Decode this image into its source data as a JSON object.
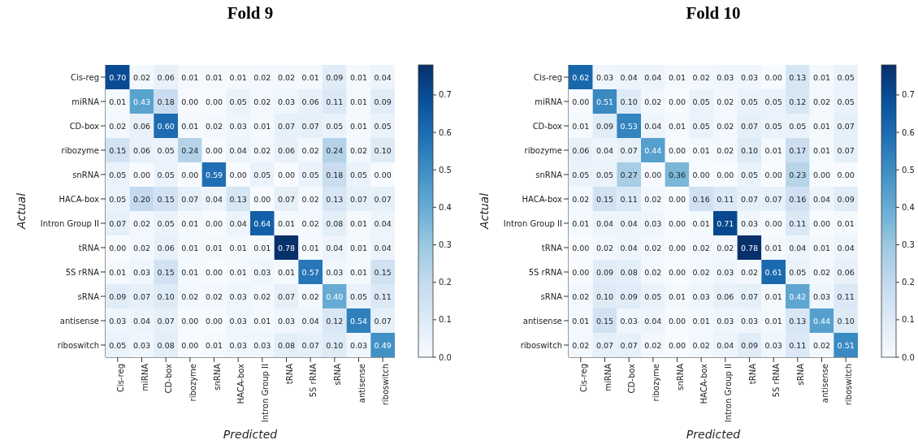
{
  "chart_data": [
    {
      "type": "heatmap",
      "title": "Fold 9",
      "xlabel": "Predicted",
      "ylabel": "Actual",
      "clim": [
        0,
        0.78
      ],
      "cticks": [
        {
          "value": 0,
          "label": "0.0"
        },
        {
          "value": 0.1,
          "label": "0.1"
        },
        {
          "value": 0.2,
          "label": "0.2"
        },
        {
          "value": 0.3,
          "label": "0.3"
        },
        {
          "value": 0.4,
          "label": "0.4"
        },
        {
          "value": 0.5,
          "label": "0.5"
        },
        {
          "value": 0.6,
          "label": "0.6"
        },
        {
          "value": 0.7,
          "label": "0.7"
        }
      ],
      "categories": [
        "Cis-reg",
        "miRNA",
        "CD-box",
        "ribozyme",
        "snRNA",
        "HACA-box",
        "Intron Group II",
        "tRNA",
        "5S rRNA",
        "sRNA",
        "antisense",
        "riboswitch"
      ],
      "y_categories": [
        "Cis-reg",
        "miRNA",
        "CD-box",
        "ribozyme",
        "snRNA",
        "HACA-box",
        "Intron Group II",
        "tRNA",
        "5S rRNA",
        "sRNA",
        "antisense",
        "riboswitch"
      ],
      "cells": [
        [
          0.7,
          0.02,
          0.06,
          0.01,
          0.01,
          0.01,
          0.02,
          0.02,
          0.01,
          0.09,
          0.01,
          0.04
        ],
        [
          0.01,
          0.43,
          0.18,
          0.0,
          0.0,
          0.05,
          0.02,
          0.03,
          0.06,
          0.11,
          0.01,
          0.09
        ],
        [
          0.02,
          0.06,
          0.6,
          0.01,
          0.02,
          0.03,
          0.01,
          0.07,
          0.07,
          0.05,
          0.01,
          0.05
        ],
        [
          0.15,
          0.06,
          0.05,
          0.24,
          0.0,
          0.04,
          0.02,
          0.06,
          0.02,
          0.24,
          0.02,
          0.1
        ],
        [
          0.05,
          0.0,
          0.05,
          0.0,
          0.59,
          0.0,
          0.05,
          0.0,
          0.05,
          0.18,
          0.05,
          0.0
        ],
        [
          0.05,
          0.2,
          0.15,
          0.07,
          0.04,
          0.13,
          0.0,
          0.07,
          0.02,
          0.13,
          0.07,
          0.07
        ],
        [
          0.07,
          0.02,
          0.05,
          0.01,
          0.0,
          0.04,
          0.64,
          0.01,
          0.02,
          0.08,
          0.01,
          0.04
        ],
        [
          0.0,
          0.02,
          0.06,
          0.01,
          0.01,
          0.01,
          0.01,
          0.78,
          0.01,
          0.04,
          0.01,
          0.04
        ],
        [
          0.01,
          0.03,
          0.15,
          0.01,
          0.0,
          0.01,
          0.03,
          0.01,
          0.57,
          0.03,
          0.01,
          0.15
        ],
        [
          0.09,
          0.07,
          0.1,
          0.02,
          0.02,
          0.03,
          0.02,
          0.07,
          0.02,
          0.4,
          0.05,
          0.11
        ],
        [
          0.03,
          0.04,
          0.07,
          0.0,
          0.0,
          0.03,
          0.01,
          0.03,
          0.04,
          0.12,
          0.54,
          0.07
        ],
        [
          0.05,
          0.03,
          0.08,
          0.0,
          0.01,
          0.03,
          0.03,
          0.08,
          0.07,
          0.1,
          0.03,
          0.49
        ]
      ],
      "cell_labels": [
        [
          "0.70",
          "0.02",
          "0.06",
          "0.01",
          "0.01",
          "0.01",
          "0.02",
          "0.02",
          "0.01",
          "0.09",
          "0.01",
          "0.04"
        ],
        [
          "0.01",
          "0.43",
          "0.18",
          "0.00",
          "0.00",
          "0.05",
          "0.02",
          "0.03",
          "0.06",
          "0.11",
          "0.01",
          "0.09"
        ],
        [
          "0.02",
          "0.06",
          "0.60",
          "0.01",
          "0.02",
          "0.03",
          "0.01",
          "0.07",
          "0.07",
          "0.05",
          "0.01",
          "0.05"
        ],
        [
          "0.15",
          "0.06",
          "0.05",
          "0.24",
          "0.00",
          "0.04",
          "0.02",
          "0.06",
          "0.02",
          "0.24",
          "0.02",
          "0.10"
        ],
        [
          "0.05",
          "0.00",
          "0.05",
          "0.00",
          "0.59",
          "0.00",
          "0.05",
          "0.00",
          "0.05",
          "0.18",
          "0.05",
          "0.00"
        ],
        [
          "0.05",
          "0.20",
          "0.15",
          "0.07",
          "0.04",
          "0.13",
          "0.00",
          "0.07",
          "0.02",
          "0.13",
          "0.07",
          "0.07"
        ],
        [
          "0.07",
          "0.02",
          "0.05",
          "0.01",
          "0.00",
          "0.04",
          "0.64",
          "0.01",
          "0.02",
          "0.08",
          "0.01",
          "0.04"
        ],
        [
          "0.00",
          "0.02",
          "0.06",
          "0.01",
          "0.01",
          "0.01",
          "0.01",
          "0.78",
          "0.01",
          "0.04",
          "0.01",
          "0.04"
        ],
        [
          "0.01",
          "0.03",
          "0.15",
          "0.01",
          "0.00",
          "0.01",
          "0.03",
          "0.01",
          "0.57",
          "0.03",
          "0.01",
          "0.15"
        ],
        [
          "0.09",
          "0.07",
          "0.10",
          "0.02",
          "0.02",
          "0.03",
          "0.02",
          "0.07",
          "0.02",
          "0.40",
          "0.05",
          "0.11"
        ],
        [
          "0.03",
          "0.04",
          "0.07",
          "0.00",
          "0.00",
          "0.03",
          "0.01",
          "0.03",
          "0.04",
          "0.12",
          "0.54",
          "0.07"
        ],
        [
          "0.05",
          "0.03",
          "0.08",
          "0.00",
          "0.01",
          "0.03",
          "0.03",
          "0.08",
          "0.07",
          "0.10",
          "0.03",
          "0.49"
        ]
      ]
    },
    {
      "type": "heatmap",
      "title": "Fold 10",
      "xlabel": "Predicted",
      "ylabel": "Actual",
      "clim": [
        0,
        0.78
      ],
      "cticks": [
        {
          "value": 0,
          "label": "0.0"
        },
        {
          "value": 0.1,
          "label": "0.1"
        },
        {
          "value": 0.2,
          "label": "0.2"
        },
        {
          "value": 0.3,
          "label": "0.3"
        },
        {
          "value": 0.4,
          "label": "0.4"
        },
        {
          "value": 0.5,
          "label": "0.5"
        },
        {
          "value": 0.6,
          "label": "0.6"
        },
        {
          "value": 0.7,
          "label": "0.7"
        }
      ],
      "categories": [
        "Cis-reg",
        "miRNA",
        "CD-box",
        "ribozyme",
        "snRNA",
        "HACA-box",
        "Intron Group II",
        "tRNA",
        "5S rRNA",
        "sRNA",
        "antisense",
        "riboswitch"
      ],
      "y_categories": [
        "Cis-reg",
        "miRNA",
        "CD-box",
        "ribozyme",
        "snRNA",
        "HACA-box",
        "Intron Group II",
        "tRNA",
        "5S rRNA",
        "sRNA",
        "antisense",
        "riboswitch"
      ],
      "cells": [
        [
          0.62,
          0.03,
          0.04,
          0.04,
          0.01,
          0.02,
          0.03,
          0.03,
          0.0,
          0.13,
          0.01,
          0.05
        ],
        [
          0.0,
          0.51,
          0.1,
          0.02,
          0.0,
          0.05,
          0.02,
          0.05,
          0.05,
          0.12,
          0.02,
          0.05
        ],
        [
          0.01,
          0.09,
          0.53,
          0.04,
          0.01,
          0.05,
          0.02,
          0.07,
          0.05,
          0.05,
          0.01,
          0.07
        ],
        [
          0.06,
          0.04,
          0.07,
          0.44,
          0.0,
          0.01,
          0.02,
          0.1,
          0.01,
          0.17,
          0.01,
          0.07
        ],
        [
          0.05,
          0.05,
          0.27,
          0.0,
          0.36,
          0.0,
          0.0,
          0.05,
          0.0,
          0.23,
          0.0,
          0.0
        ],
        [
          0.02,
          0.15,
          0.11,
          0.02,
          0.0,
          0.16,
          0.11,
          0.07,
          0.07,
          0.16,
          0.04,
          0.09
        ],
        [
          0.01,
          0.04,
          0.04,
          0.03,
          0.0,
          0.01,
          0.71,
          0.03,
          0.0,
          0.11,
          0.0,
          0.01
        ],
        [
          0.0,
          0.02,
          0.04,
          0.02,
          0.0,
          0.02,
          0.02,
          0.78,
          0.01,
          0.04,
          0.01,
          0.04
        ],
        [
          0.0,
          0.09,
          0.08,
          0.02,
          0.0,
          0.02,
          0.03,
          0.02,
          0.61,
          0.05,
          0.02,
          0.06
        ],
        [
          0.02,
          0.1,
          0.09,
          0.05,
          0.01,
          0.03,
          0.06,
          0.07,
          0.01,
          0.42,
          0.03,
          0.11
        ],
        [
          0.01,
          0.15,
          0.03,
          0.04,
          0.0,
          0.01,
          0.03,
          0.03,
          0.01,
          0.13,
          0.44,
          0.1
        ],
        [
          0.02,
          0.07,
          0.07,
          0.02,
          0.0,
          0.02,
          0.04,
          0.09,
          0.03,
          0.11,
          0.02,
          0.51
        ]
      ],
      "cell_labels": [
        [
          "0.62",
          "0.03",
          "0.04",
          "0.04",
          "0.01",
          "0.02",
          "0.03",
          "0.03",
          "0.00",
          "0.13",
          "0.01",
          "0.05"
        ],
        [
          "0.00",
          "0.51",
          "0.10",
          "0.02",
          "0.00",
          "0.05",
          "0.02",
          "0.05",
          "0.05",
          "0.12",
          "0.02",
          "0.05"
        ],
        [
          "0.01",
          "0.09",
          "0.53",
          "0.04",
          "0.01",
          "0.05",
          "0.02",
          "0.07",
          "0.05",
          "0.05",
          "0.01",
          "0.07"
        ],
        [
          "0.06",
          "0.04",
          "0.07",
          "0.44",
          "0.00",
          "0.01",
          "0.02",
          "0.10",
          "0.01",
          "0.17",
          "0.01",
          "0.07"
        ],
        [
          "0.05",
          "0.05",
          "0.27",
          "0.00",
          "0.36",
          "0.00",
          "0.00",
          "0.05",
          "0.00",
          "0.23",
          "0.00",
          "0.00"
        ],
        [
          "0.02",
          "0.15",
          "0.11",
          "0.02",
          "0.00",
          "0.16",
          "0.11",
          "0.07",
          "0.07",
          "0.16",
          "0.04",
          "0.09"
        ],
        [
          "0.01",
          "0.04",
          "0.04",
          "0.03",
          "0.00",
          "0.01",
          "0.71",
          "0.03",
          "0.00",
          "0.11",
          "0.00",
          "0.01"
        ],
        [
          "0.00",
          "0.02",
          "0.04",
          "0.02",
          "0.00",
          "0.02",
          "0.02",
          "0.78",
          "0.01",
          "0.04",
          "0.01",
          "0.04"
        ],
        [
          "0.00",
          "0.09",
          "0.08",
          "0.02",
          "0.00",
          "0.02",
          "0.03",
          "0.02",
          "0.61",
          "0.05",
          "0.02",
          "0.06"
        ],
        [
          "0.02",
          "0.10",
          "0.09",
          "0.05",
          "0.01",
          "0.03",
          "0.06",
          "0.07",
          "0.01",
          "0.42",
          "0.03",
          "0.11"
        ],
        [
          "0.01",
          "0.15",
          "0.03",
          "0.04",
          "0.00",
          "0.01",
          "0.03",
          "0.03",
          "0.01",
          "0.13",
          "0.44",
          "0.10"
        ],
        [
          "0.02",
          "0.07",
          "0.07",
          "0.02",
          "0.00",
          "0.02",
          "0.04",
          "0.09",
          "0.03",
          "0.11",
          "0.02",
          "0.51"
        ]
      ]
    }
  ]
}
